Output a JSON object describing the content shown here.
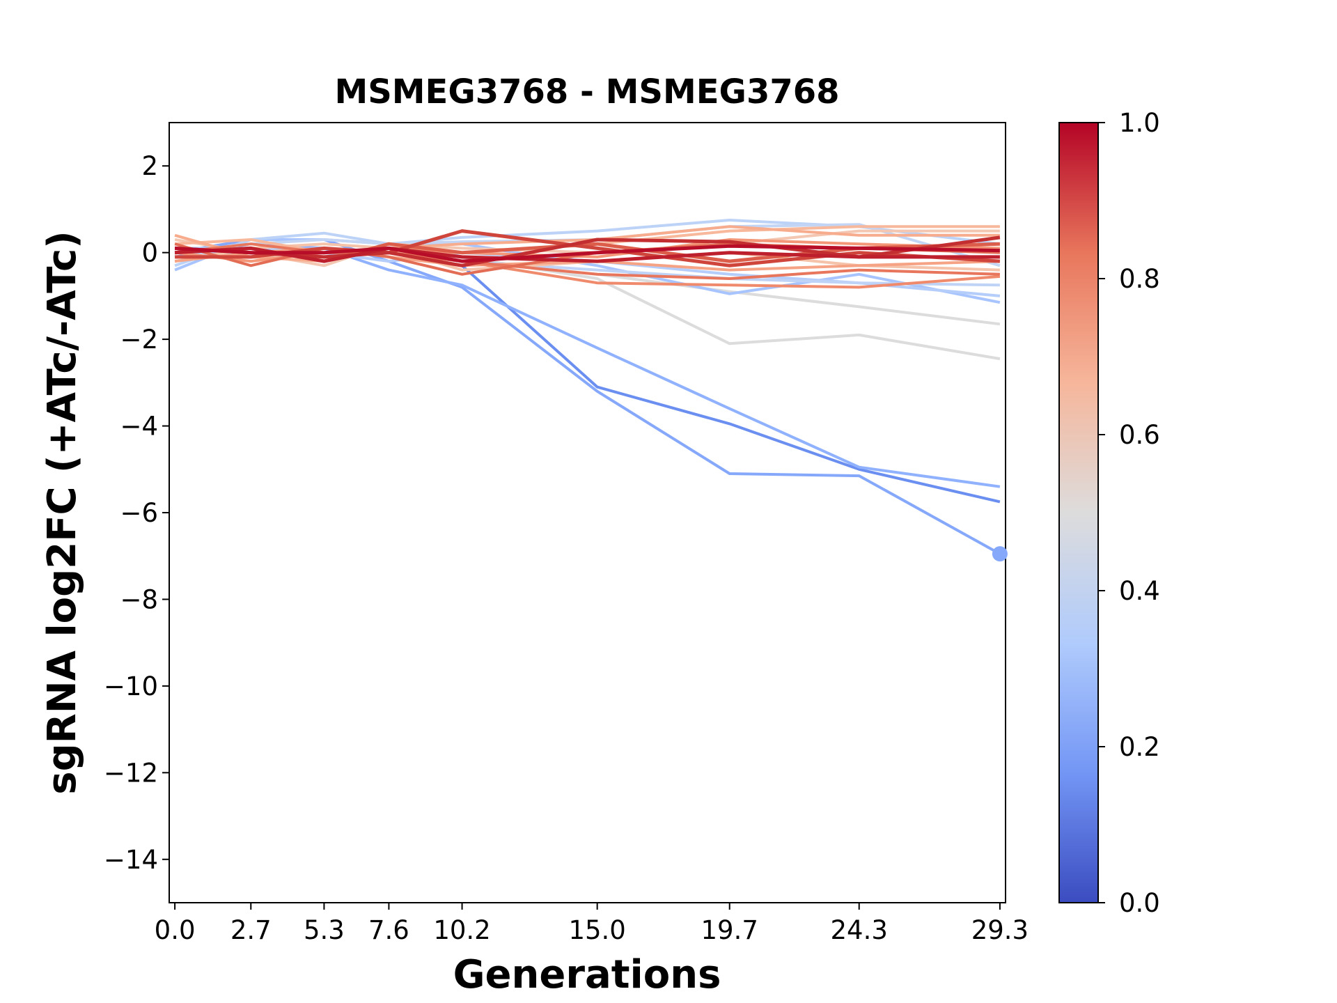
{
  "chart_data": {
    "type": "line",
    "title": "MSMEG3768 - MSMEG3768",
    "xlabel": "Generations",
    "ylabel": "sgRNA log2FC (+ATc/-ATc)",
    "x": [
      0.0,
      2.7,
      5.3,
      7.6,
      10.2,
      15.0,
      19.7,
      24.3,
      29.3
    ],
    "x_tick_labels": [
      "0.0",
      "2.7",
      "5.3",
      "7.6",
      "10.2",
      "15.0",
      "19.7",
      "24.3",
      "29.3"
    ],
    "xlim": [
      -0.2,
      29.5
    ],
    "ylim": [
      -15,
      3
    ],
    "y_ticks": [
      2,
      0,
      -2,
      -4,
      -6,
      -8,
      -10,
      -12,
      -14
    ],
    "y_tick_labels": [
      "2",
      "0",
      "−2",
      "−4",
      "−6",
      "−8",
      "−10",
      "−12",
      "−14"
    ],
    "colorbar": {
      "ticks": [
        0.0,
        0.2,
        0.4,
        0.6,
        0.8,
        1.0
      ],
      "tick_labels": [
        "0.0",
        "0.2",
        "0.4",
        "0.6",
        "0.8",
        "1.0"
      ],
      "colors": [
        "#3b4cc0",
        "#7396f5",
        "#b0cbfc",
        "#dddcdc",
        "#f6b69b",
        "#e8765c",
        "#b40426"
      ]
    },
    "series": [
      {
        "color_value": 0.15,
        "color": "#6b8ff0",
        "values": [
          0.0,
          0.1,
          0.0,
          0.0,
          -0.3,
          -3.1,
          -3.95,
          -5.0,
          -5.75
        ]
      },
      {
        "color_value": 0.22,
        "color": "#86a8fb",
        "values": [
          0.0,
          0.3,
          0.3,
          -0.2,
          -0.8,
          -3.2,
          -5.1,
          -5.15,
          -6.95
        ],
        "end_marker": true
      },
      {
        "color_value": 0.24,
        "color": "#8fb1fe",
        "values": [
          -0.1,
          0.2,
          0.1,
          -0.4,
          -0.75,
          -2.2,
          -3.6,
          -4.95,
          -5.4
        ]
      },
      {
        "color_value": 0.5,
        "color": "#dcdcdc",
        "values": [
          0.0,
          0.1,
          0.0,
          0.0,
          -0.1,
          -0.6,
          -2.1,
          -1.9,
          -2.45
        ]
      },
      {
        "color_value": 0.5,
        "color": "#dddcdc",
        "values": [
          0.0,
          0.0,
          -0.1,
          0.0,
          -0.2,
          -0.5,
          -0.9,
          -1.25,
          -1.65
        ]
      },
      {
        "color_value": 0.35,
        "color": "#a8c4fe",
        "values": [
          -0.4,
          0.3,
          0.3,
          0.2,
          0.2,
          -0.3,
          -0.95,
          -0.5,
          -1.15
        ]
      },
      {
        "color_value": 0.4,
        "color": "#bcd2f7",
        "values": [
          -0.3,
          0.3,
          0.45,
          0.2,
          0.35,
          0.5,
          0.75,
          0.6,
          0.2
        ]
      },
      {
        "color_value": 0.42,
        "color": "#c3d5f4",
        "values": [
          0.0,
          0.2,
          0.3,
          0.2,
          0.25,
          0.3,
          0.6,
          0.65,
          -0.3
        ]
      },
      {
        "color_value": 0.38,
        "color": "#b5cdfa",
        "values": [
          0.1,
          0.1,
          0.0,
          -0.2,
          0.0,
          -0.2,
          -0.5,
          -0.7,
          -1.0
        ]
      },
      {
        "color_value": 0.4,
        "color": "#bfd3f6",
        "values": [
          0.0,
          0.0,
          0.1,
          0.0,
          -0.2,
          -0.4,
          -0.6,
          -0.7,
          -0.75
        ]
      },
      {
        "color_value": 0.62,
        "color": "#f3c7b1",
        "values": [
          0.3,
          0.0,
          -0.3,
          0.2,
          0.1,
          0.0,
          0.2,
          0.5,
          0.5
        ]
      },
      {
        "color_value": 0.65,
        "color": "#f5c2aa",
        "values": [
          -0.2,
          0.1,
          0.2,
          0.1,
          -0.4,
          -0.2,
          0.0,
          -0.3,
          -0.4
        ]
      },
      {
        "color_value": 0.68,
        "color": "#f7b89c",
        "values": [
          0.2,
          0.3,
          0.0,
          0.0,
          0.0,
          0.2,
          0.5,
          0.6,
          0.6
        ]
      },
      {
        "color_value": 0.7,
        "color": "#f7ac8e",
        "values": [
          0.4,
          -0.1,
          -0.2,
          0.1,
          0.2,
          0.3,
          0.6,
          0.4,
          0.4
        ]
      },
      {
        "color_value": 0.72,
        "color": "#f6a385",
        "values": [
          -0.2,
          0.0,
          0.1,
          -0.1,
          -0.3,
          -0.2,
          -0.4,
          -0.3,
          -0.2
        ]
      },
      {
        "color_value": 0.75,
        "color": "#f39778",
        "values": [
          0.0,
          -0.2,
          0.0,
          0.1,
          0.0,
          -0.1,
          0.3,
          0.2,
          0.1
        ]
      },
      {
        "color_value": 0.77,
        "color": "#f08a6c",
        "values": [
          0.1,
          0.0,
          -0.1,
          0.0,
          -0.2,
          -0.7,
          -0.75,
          -0.8,
          -0.55
        ]
      },
      {
        "color_value": 0.8,
        "color": "#e8765c",
        "values": [
          0.0,
          0.2,
          0.0,
          0.0,
          -0.2,
          -0.5,
          -0.6,
          -0.4,
          -0.5
        ]
      },
      {
        "color_value": 0.83,
        "color": "#e36c55",
        "values": [
          0.2,
          -0.3,
          0.1,
          -0.1,
          -0.5,
          0.0,
          0.2,
          0.1,
          0.0
        ]
      },
      {
        "color_value": 0.86,
        "color": "#dc5d4a",
        "values": [
          0.0,
          0.1,
          -0.2,
          0.2,
          0.0,
          0.2,
          -0.2,
          0.1,
          0.2
        ]
      },
      {
        "color_value": 0.9,
        "color": "#cf453c",
        "values": [
          -0.1,
          -0.1,
          0.1,
          0.0,
          0.5,
          0.1,
          -0.3,
          0.0,
          -0.2
        ]
      },
      {
        "color_value": 0.93,
        "color": "#c32e31",
        "values": [
          0.1,
          0.0,
          -0.1,
          0.0,
          -0.3,
          0.3,
          0.25,
          -0.1,
          0.35
        ]
      },
      {
        "color_value": 0.96,
        "color": "#bd1f2d",
        "values": [
          0.0,
          0.1,
          -0.2,
          0.1,
          -0.1,
          -0.2,
          0.0,
          -0.1,
          -0.1
        ]
      },
      {
        "color_value": 0.98,
        "color": "#b70d28",
        "values": [
          0.1,
          0.0,
          0.0,
          0.1,
          -0.2,
          0.0,
          0.15,
          0.1,
          0.05
        ]
      }
    ]
  }
}
